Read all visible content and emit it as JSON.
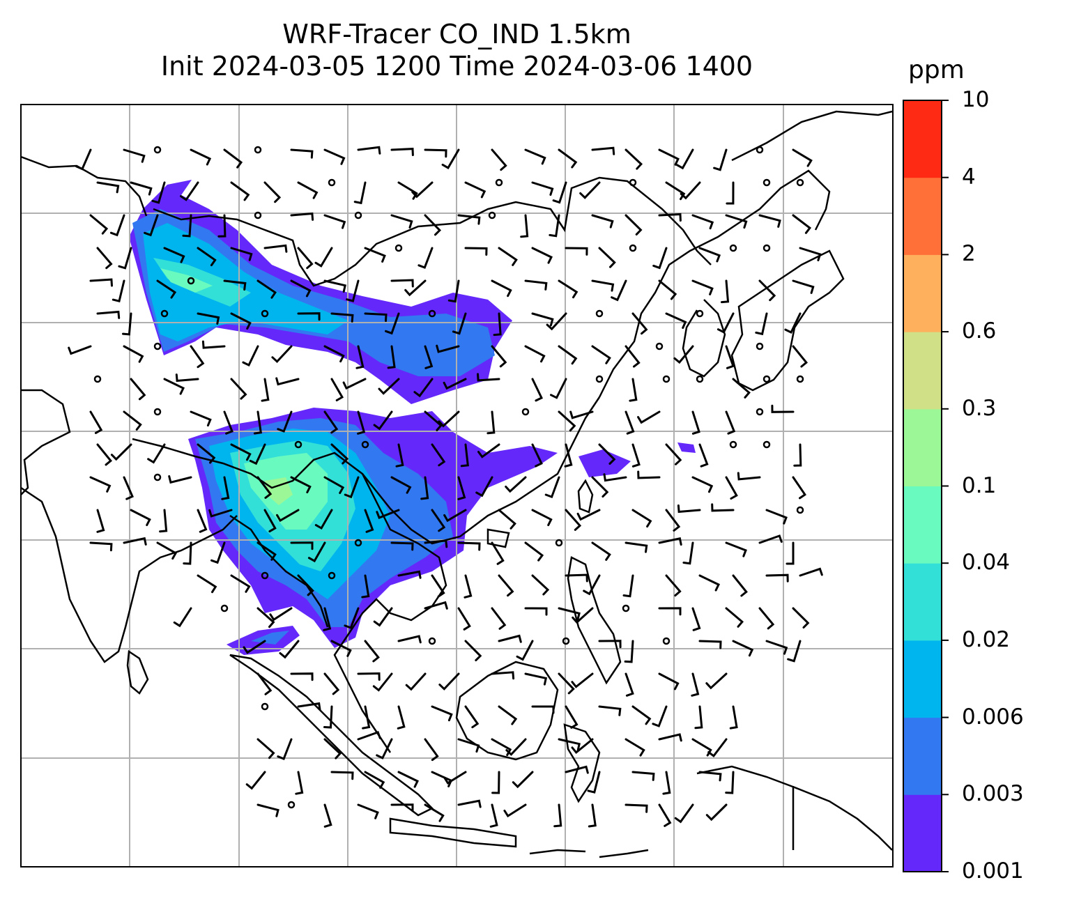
{
  "title": {
    "line1": "WRF-Tracer CO_IND 1.5km",
    "line2": "Init 2024-03-05 1200 Time 2024-03-06 1400"
  },
  "colorbar": {
    "unit": "ppm",
    "levels": [
      "0.001",
      "0.003",
      "0.006",
      "0.02",
      "0.04",
      "0.1",
      "0.3",
      "0.6",
      "2",
      "4",
      "10"
    ],
    "colors": [
      "#6428fa",
      "#3278f0",
      "#00b4ee",
      "#32e0d8",
      "#69fac0",
      "#9cf896",
      "#d0e086",
      "#ffb05c",
      "#ff7038",
      "#ff2a14"
    ]
  },
  "map": {
    "graticule": "on",
    "wind_barbs": "on",
    "coastlines_color": "#000000",
    "grid_color": "#b0b0b0"
  }
}
